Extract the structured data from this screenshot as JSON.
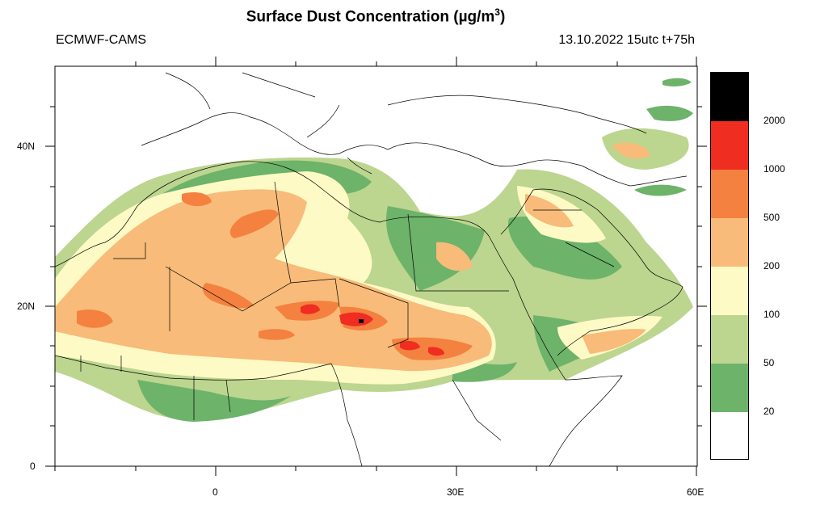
{
  "header": {
    "title": "Surface Dust Concentration (",
    "unit_mu": "µ",
    "unit_rest": "g/m",
    "unit_exp": "3",
    "title_close": ")",
    "model": "ECMWF-CAMS",
    "run": "13.10.2022 15utc t+75h"
  },
  "axes": {
    "lat_labels": [
      "40N",
      "20N",
      "0"
    ],
    "lon_labels": [
      "0",
      "30E",
      "60E"
    ]
  },
  "legend": {
    "levels": [
      "2000",
      "1000",
      "500",
      "200",
      "100",
      "50",
      "20"
    ],
    "colors": {
      "above_2000": "#000000",
      "l1000": "#ef2d20",
      "l500": "#f4813f",
      "l200": "#f8bb79",
      "l100": "#fdfac5",
      "l50": "#bcd58f",
      "l20": "#6db36a",
      "below_20": "#ffffff"
    }
  }
}
